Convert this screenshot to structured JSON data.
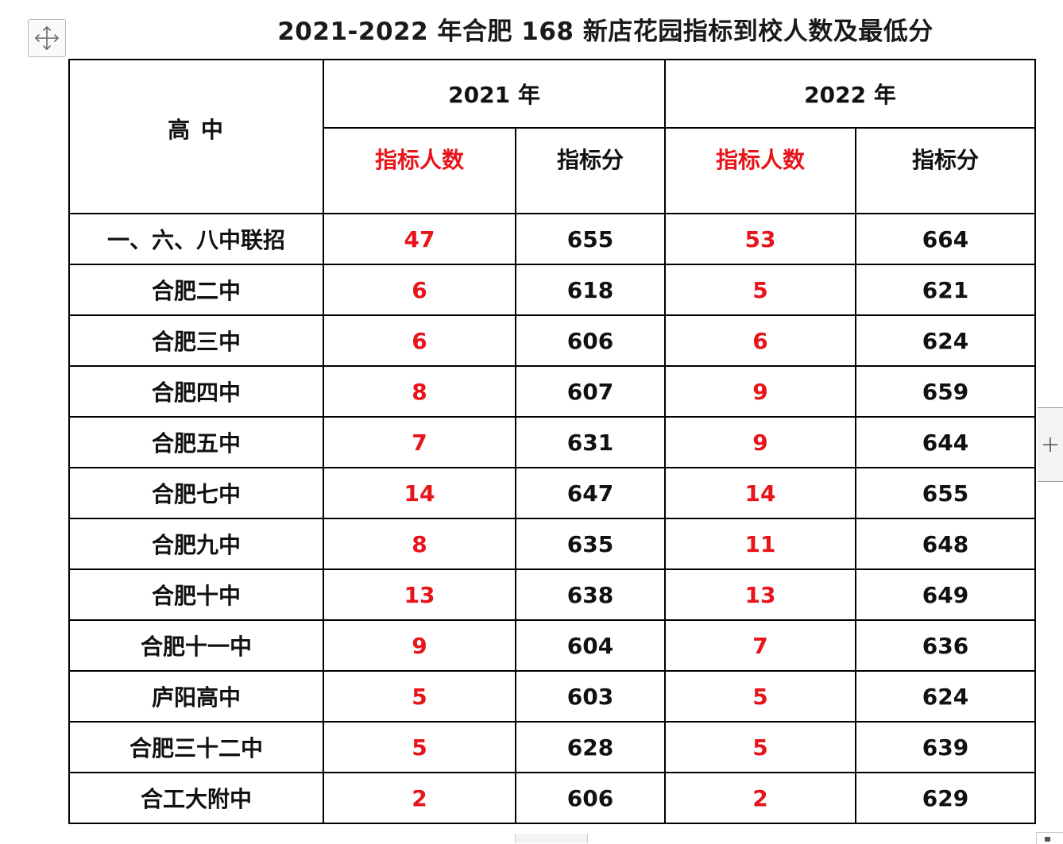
{
  "title": "2021-2022 年合肥 168 新店花园指标到校人数及最低分",
  "icons": {
    "move_handle": "four-way-arrow-move-icon",
    "add_column": "plus-icon"
  },
  "colors": {
    "count_text": "#e8141a",
    "score_text": "#111111",
    "border": "#000000"
  },
  "table": {
    "header": {
      "school_col": "高 中",
      "years": [
        {
          "label": "2021 年",
          "count_label": "指标人数",
          "score_label": "指标分"
        },
        {
          "label": "2022 年",
          "count_label": "指标人数",
          "score_label": "指标分"
        }
      ]
    },
    "rows": [
      {
        "school": "一、六、八中联招",
        "c2021": "47",
        "s2021": "655",
        "c2022": "53",
        "s2022": "664"
      },
      {
        "school": "合肥二中",
        "c2021": "6",
        "s2021": "618",
        "c2022": "5",
        "s2022": "621"
      },
      {
        "school": "合肥三中",
        "c2021": "6",
        "s2021": "606",
        "c2022": "6",
        "s2022": "624"
      },
      {
        "school": "合肥四中",
        "c2021": "8",
        "s2021": "607",
        "c2022": "9",
        "s2022": "659"
      },
      {
        "school": "合肥五中",
        "c2021": "7",
        "s2021": "631",
        "c2022": "9",
        "s2022": "644"
      },
      {
        "school": "合肥七中",
        "c2021": "14",
        "s2021": "647",
        "c2022": "14",
        "s2022": "655"
      },
      {
        "school": "合肥九中",
        "c2021": "8",
        "s2021": "635",
        "c2022": "11",
        "s2022": "648"
      },
      {
        "school": "合肥十中",
        "c2021": "13",
        "s2021": "638",
        "c2022": "13",
        "s2022": "649"
      },
      {
        "school": "合肥十一中",
        "c2021": "9",
        "s2021": "604",
        "c2022": "7",
        "s2022": "636"
      },
      {
        "school": "庐阳高中",
        "c2021": "5",
        "s2021": "603",
        "c2022": "5",
        "s2022": "624"
      },
      {
        "school": "合肥三十二中",
        "c2021": "5",
        "s2021": "628",
        "c2022": "5",
        "s2022": "639"
      },
      {
        "school": "合工大附中",
        "c2021": "2",
        "s2021": "606",
        "c2022": "2",
        "s2022": "629"
      }
    ]
  }
}
